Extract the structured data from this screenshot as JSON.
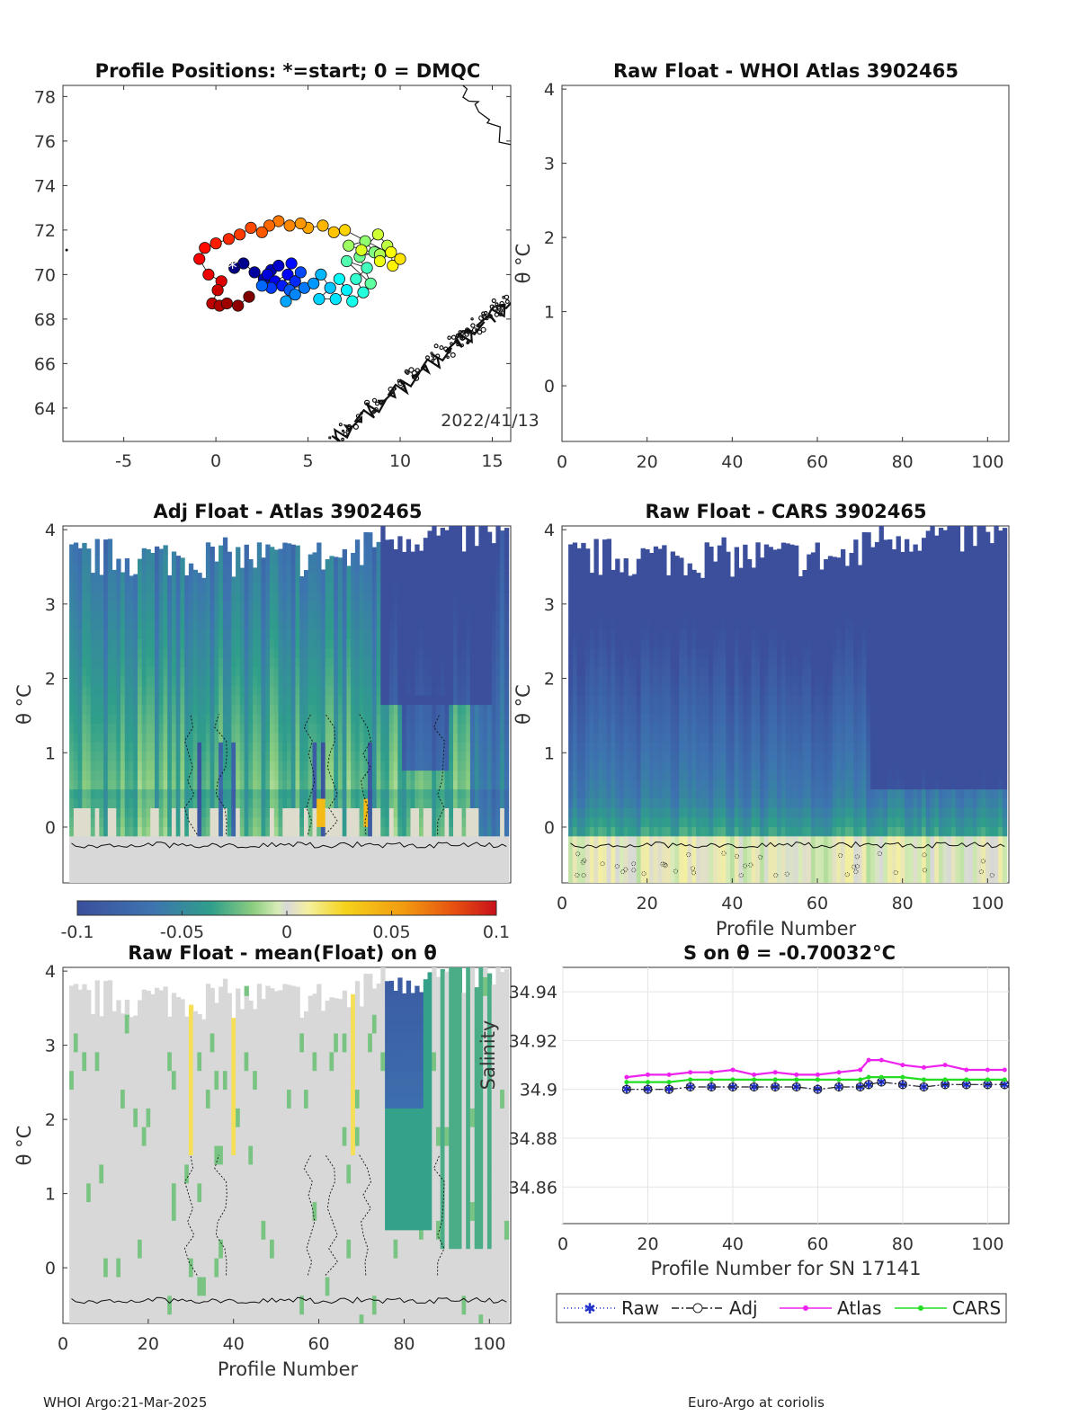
{
  "footer": {
    "left": "WHOI Argo:21-Mar-2025",
    "right": "Euro-Argo at coriolis"
  },
  "chart_data": [
    {
      "id": "positions",
      "type": "scatter",
      "title": "Profile Positions: *=start; 0 = DMQC",
      "date_label": "2022/41/13",
      "xlim": [
        -8.3,
        16
      ],
      "ylim": [
        62.5,
        78.5
      ],
      "xticks": [
        -5,
        0,
        5,
        10,
        15
      ],
      "yticks": [
        64,
        66,
        68,
        70,
        72,
        74,
        76,
        78
      ],
      "start_marker": "*",
      "points": [
        {
          "x": 1.0,
          "y": 70.3
        },
        {
          "x": 1.5,
          "y": 70.5
        },
        {
          "x": 2.1,
          "y": 70.1
        },
        {
          "x": 2.6,
          "y": 69.8
        },
        {
          "x": 3.0,
          "y": 70.2
        },
        {
          "x": 3.4,
          "y": 70.4
        },
        {
          "x": 2.8,
          "y": 70.0
        },
        {
          "x": 3.2,
          "y": 69.7
        },
        {
          "x": 3.9,
          "y": 70.0
        },
        {
          "x": 4.1,
          "y": 70.5
        },
        {
          "x": 3.6,
          "y": 69.5
        },
        {
          "x": 4.3,
          "y": 69.7
        },
        {
          "x": 3.0,
          "y": 69.4
        },
        {
          "x": 4.6,
          "y": 70.1
        },
        {
          "x": 4.0,
          "y": 69.3
        },
        {
          "x": 2.5,
          "y": 69.5
        },
        {
          "x": 4.8,
          "y": 69.4
        },
        {
          "x": 4.3,
          "y": 69.1
        },
        {
          "x": 5.3,
          "y": 69.6
        },
        {
          "x": 3.8,
          "y": 68.8
        },
        {
          "x": 5.7,
          "y": 70.0
        },
        {
          "x": 6.2,
          "y": 69.4
        },
        {
          "x": 5.6,
          "y": 68.9
        },
        {
          "x": 6.5,
          "y": 68.9
        },
        {
          "x": 7.1,
          "y": 69.3
        },
        {
          "x": 6.7,
          "y": 69.8
        },
        {
          "x": 7.4,
          "y": 68.8
        },
        {
          "x": 8.0,
          "y": 69.2
        },
        {
          "x": 7.6,
          "y": 69.8
        },
        {
          "x": 8.2,
          "y": 70.3
        },
        {
          "x": 7.1,
          "y": 70.6
        },
        {
          "x": 8.4,
          "y": 69.6
        },
        {
          "x": 7.8,
          "y": 70.8
        },
        {
          "x": 8.6,
          "y": 71.0
        },
        {
          "x": 8.1,
          "y": 71.5
        },
        {
          "x": 7.2,
          "y": 71.3
        },
        {
          "x": 8.9,
          "y": 70.9
        },
        {
          "x": 9.3,
          "y": 71.3
        },
        {
          "x": 8.8,
          "y": 71.8
        },
        {
          "x": 7.9,
          "y": 71.1
        },
        {
          "x": 8.9,
          "y": 70.6
        },
        {
          "x": 9.5,
          "y": 71.0
        },
        {
          "x": 9.6,
          "y": 70.4
        },
        {
          "x": 10.0,
          "y": 70.7
        },
        {
          "x": 7.0,
          "y": 72.0
        },
        {
          "x": 6.4,
          "y": 71.9
        },
        {
          "x": 5.8,
          "y": 72.2
        },
        {
          "x": 5.0,
          "y": 72.1
        },
        {
          "x": 4.6,
          "y": 72.3
        },
        {
          "x": 4.0,
          "y": 72.2
        },
        {
          "x": 3.4,
          "y": 72.4
        },
        {
          "x": 2.9,
          "y": 72.2
        },
        {
          "x": 2.5,
          "y": 71.9
        },
        {
          "x": 1.9,
          "y": 72.1
        },
        {
          "x": 1.3,
          "y": 71.8
        },
        {
          "x": 0.7,
          "y": 71.6
        },
        {
          "x": 0.0,
          "y": 71.4
        },
        {
          "x": -0.6,
          "y": 71.2
        },
        {
          "x": -0.9,
          "y": 70.7
        },
        {
          "x": -0.4,
          "y": 70.0
        },
        {
          "x": 0.3,
          "y": 69.7
        },
        {
          "x": 0.1,
          "y": 69.3
        },
        {
          "x": -0.2,
          "y": 68.7
        },
        {
          "x": 0.2,
          "y": 68.6
        },
        {
          "x": 0.6,
          "y": 68.7
        },
        {
          "x": 1.2,
          "y": 68.6
        },
        {
          "x": 1.8,
          "y": 69.0
        }
      ]
    },
    {
      "id": "whoi_atlas",
      "type": "heatmap",
      "title": "Raw Float - WHOI Atlas  3902465",
      "xlabel": "",
      "ylabel": "θ °C",
      "xlim": [
        0,
        105
      ],
      "ylim": [
        -0.75,
        4.05
      ],
      "xticks": [
        0,
        20,
        40,
        60,
        80,
        100
      ],
      "yticks": [
        0,
        1,
        2,
        3,
        4
      ],
      "regime": "atlas_raw"
    },
    {
      "id": "adj_atlas",
      "type": "heatmap",
      "title": "Adj Float - Atlas  3902465",
      "xlabel": "",
      "ylabel": "θ °C",
      "xlim": [
        0,
        105
      ],
      "ylim": [
        -0.75,
        4.05
      ],
      "xticks": [],
      "yticks": [
        0,
        1,
        2,
        3,
        4
      ],
      "regime": "atlas_adj"
    },
    {
      "id": "cars",
      "type": "heatmap",
      "title": "Raw Float - CARS  3902465",
      "xlabel": "Profile Number",
      "ylabel": "θ °C",
      "xlim": [
        0,
        105
      ],
      "ylim": [
        -0.75,
        4.05
      ],
      "xticks": [
        0,
        20,
        40,
        60,
        80,
        100
      ],
      "yticks": [
        0,
        1,
        2,
        3,
        4
      ],
      "regime": "cars"
    },
    {
      "id": "colorbar",
      "type": "heatmap",
      "title": "",
      "range": [
        -0.1,
        0.1
      ],
      "tick_values": [
        -0.1,
        -0.05,
        0,
        0.05,
        0.1
      ],
      "tick_labels": [
        "-0.1",
        "-0.05",
        "0",
        "0.05",
        "0.1"
      ]
    },
    {
      "id": "mean_float",
      "type": "heatmap",
      "title": "Raw Float - mean(Float) on θ",
      "xlabel": "Profile Number",
      "ylabel": "θ °C",
      "xlim": [
        0,
        105
      ],
      "ylim": [
        -0.75,
        4.05
      ],
      "xticks": [
        0,
        20,
        40,
        60,
        80,
        100
      ],
      "yticks": [
        0,
        1,
        2,
        3,
        4
      ],
      "regime": "mean"
    },
    {
      "id": "s_on_theta",
      "type": "line",
      "title": "S on θ = -0.70032°C",
      "xlabel": "Profile Number for SN 17141",
      "ylabel": "Salinity",
      "xlim": [
        0,
        105
      ],
      "ylim": [
        34.845,
        34.95
      ],
      "xticks": [
        0,
        20,
        40,
        60,
        80,
        100
      ],
      "yticks": [
        34.86,
        34.88,
        34.9,
        34.92,
        34.94
      ],
      "ytick_labels": [
        "34.86",
        "34.88",
        "34.9",
        "34.92",
        "34.94"
      ],
      "x": [
        15,
        20,
        25,
        30,
        35,
        40,
        45,
        50,
        55,
        60,
        65,
        70,
        72,
        75,
        80,
        85,
        90,
        95,
        100,
        104
      ],
      "series": [
        {
          "name": "Raw",
          "color": "#2233cc",
          "values": [
            34.9,
            34.9,
            34.9,
            34.901,
            34.901,
            34.901,
            34.901,
            34.901,
            34.901,
            34.9,
            34.901,
            34.901,
            34.902,
            34.903,
            34.902,
            34.901,
            34.902,
            34.902,
            34.902,
            34.902
          ]
        },
        {
          "name": "Adj",
          "color": "#222222",
          "values": [
            34.9,
            34.9,
            34.9,
            34.901,
            34.901,
            34.901,
            34.901,
            34.901,
            34.901,
            34.9,
            34.901,
            34.901,
            34.902,
            34.903,
            34.902,
            34.901,
            34.902,
            34.902,
            34.902,
            34.902
          ]
        },
        {
          "name": "Atlas",
          "color": "#ee22ee",
          "values": [
            34.905,
            34.906,
            34.906,
            34.907,
            34.907,
            34.908,
            34.906,
            34.907,
            34.906,
            34.906,
            34.907,
            34.908,
            34.912,
            34.912,
            34.91,
            34.909,
            34.91,
            34.908,
            34.908,
            34.908
          ]
        },
        {
          "name": "CARS",
          "color": "#22dd22",
          "values": [
            34.903,
            34.903,
            34.903,
            34.904,
            34.904,
            34.904,
            34.904,
            34.904,
            34.904,
            34.904,
            34.904,
            34.904,
            34.905,
            34.905,
            34.905,
            34.904,
            34.904,
            34.904,
            34.904,
            34.904
          ]
        }
      ],
      "legend_position": "bottom"
    }
  ]
}
